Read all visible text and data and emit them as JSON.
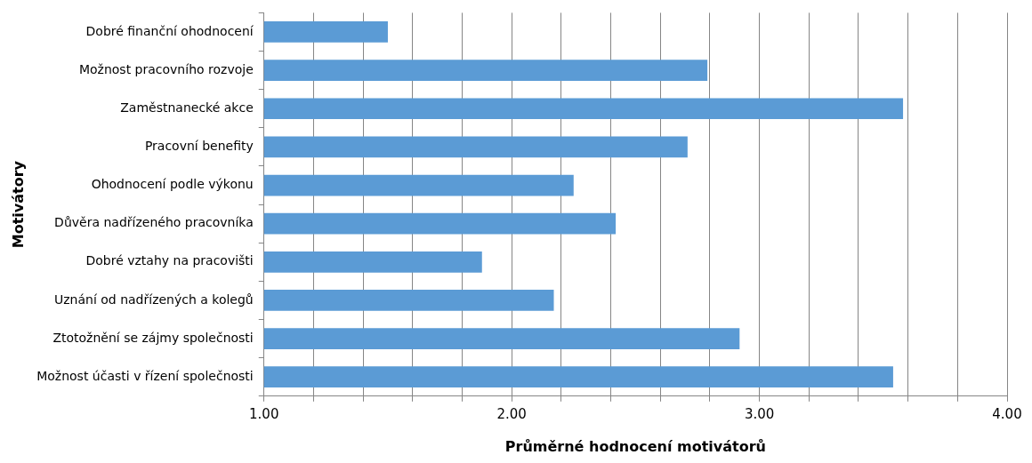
{
  "chart_data": {
    "type": "bar",
    "orientation": "horizontal",
    "xlabel": "Průměrné hodnocení motivátorů",
    "ylabel": "Motivátory",
    "categories": [
      "Dobré finanční ohodnocení",
      "Možnost pracovního rozvoje",
      "Zaměstnanecké akce",
      "Pracovní benefity",
      "Ohodnocení podle výkonu",
      "Důvěra nadřízeného pracovníka",
      "Dobré vztahy na pracovišti",
      "Uznání od nadřízených a kolegů",
      "Ztotožnění se zájmy společnosti",
      "Možnost účasti v řízení společnosti"
    ],
    "values": [
      1.5,
      2.79,
      3.58,
      2.71,
      2.25,
      2.42,
      1.88,
      2.17,
      2.92,
      3.54
    ],
    "color": "#5b9bd5",
    "xlim": [
      1,
      4
    ],
    "xticks": [
      {
        "value": 1,
        "label": "1.00"
      },
      {
        "value": 1.2,
        "label": null
      },
      {
        "value": 1.4,
        "label": null
      },
      {
        "value": 1.6,
        "label": null
      },
      {
        "value": 1.8,
        "label": null
      },
      {
        "value": 2,
        "label": "2.00"
      },
      {
        "value": 2.2,
        "label": null
      },
      {
        "value": 2.4,
        "label": null
      },
      {
        "value": 2.6,
        "label": null
      },
      {
        "value": 2.8,
        "label": null
      },
      {
        "value": 3,
        "label": "3.00"
      },
      {
        "value": 3.2,
        "label": null
      },
      {
        "value": 3.4,
        "label": null
      },
      {
        "value": 3.6,
        "label": null
      },
      {
        "value": 3.8,
        "label": null
      },
      {
        "value": 4,
        "label": "4.00"
      }
    ],
    "grid": "x",
    "legend": false
  }
}
